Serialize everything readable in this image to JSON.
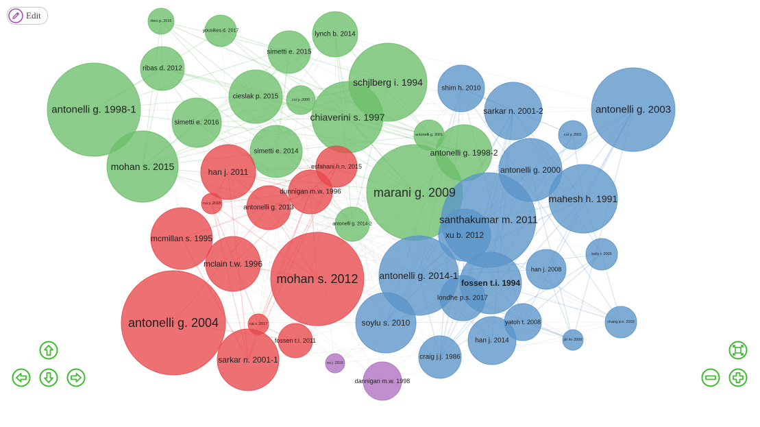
{
  "toolbar": {
    "edit_label": "Edit",
    "edit_icon": "pencil-icon"
  },
  "colors": {
    "green": "#6cbf6a",
    "blue": "#5b95c9",
    "red": "#e8484c",
    "purple": "#b16fc0",
    "controls": "#3dba2e",
    "edit_icon": "#a64fb3"
  },
  "nodes": [
    {
      "id": "n1",
      "label": "rbeo p. 2015",
      "cluster": "green",
      "size": 2
    },
    {
      "id": "n2",
      "label": "yousikes d. 2017",
      "cluster": "green",
      "size": 3
    },
    {
      "id": "n3",
      "label": "lynch b. 2014",
      "cluster": "green",
      "size": 5
    },
    {
      "id": "n4",
      "label": "ribas d. 2012",
      "cluster": "green",
      "size": 5
    },
    {
      "id": "n5",
      "label": "simetti e. 2015",
      "cluster": "green",
      "size": 5
    },
    {
      "id": "n6",
      "label": "schjlberg i. 1994",
      "cluster": "green",
      "size": 9
    },
    {
      "id": "n7",
      "label": "antonelli g. 1998-1",
      "cluster": "green",
      "size": 13
    },
    {
      "id": "n8",
      "label": "cieslak p. 2015",
      "cluster": "green",
      "size": 6
    },
    {
      "id": "n9",
      "label": "cui y. 2000",
      "cluster": "green",
      "size": 2
    },
    {
      "id": "n10",
      "label": "chiaverini s. 1997",
      "cluster": "green",
      "size": 9
    },
    {
      "id": "n11",
      "label": "simetti e. 2016",
      "cluster": "green",
      "size": 5
    },
    {
      "id": "n12",
      "label": "antonelli g. 2001",
      "cluster": "green",
      "size": 2
    },
    {
      "id": "n13",
      "label": "simetti e. 2014",
      "cluster": "green",
      "size": 6
    },
    {
      "id": "n14",
      "label": "antonelli g. 1998-2",
      "cluster": "green",
      "size": 7
    },
    {
      "id": "n15",
      "label": "mohan s. 2015",
      "cluster": "green",
      "size": 9
    },
    {
      "id": "n16",
      "label": "marani g. 2009",
      "cluster": "green",
      "size": 15
    },
    {
      "id": "n17",
      "label": "antonelli g. 2014-2",
      "cluster": "green",
      "size": 3
    },
    {
      "id": "n18",
      "label": "shim h. 2010",
      "cluster": "blue",
      "size": 5
    },
    {
      "id": "n19",
      "label": "sarkar n. 2001-2",
      "cluster": "blue",
      "size": 7
    },
    {
      "id": "n20",
      "label": "antonelli g. 2003",
      "cluster": "blue",
      "size": 12
    },
    {
      "id": "n21",
      "label": "cui y. 2001",
      "cluster": "blue",
      "size": 2
    },
    {
      "id": "n22",
      "label": "antonelli g. 2000",
      "cluster": "blue",
      "size": 8
    },
    {
      "id": "n23",
      "label": "mahesh h. 1991",
      "cluster": "blue",
      "size": 9
    },
    {
      "id": "n24",
      "label": "santhakumar m. 2011",
      "cluster": "blue",
      "size": 12
    },
    {
      "id": "n25",
      "label": "xu b. 2012",
      "cluster": "blue",
      "size": 7
    },
    {
      "id": "n26",
      "label": "kelly r. 2005",
      "cluster": "blue",
      "size": 2
    },
    {
      "id": "n27",
      "label": "han j. 2008",
      "cluster": "blue",
      "size": 4
    },
    {
      "id": "n28",
      "label": "antonelli g. 2014-1",
      "cluster": "blue",
      "size": 11
    },
    {
      "id": "n29",
      "label": "fossen t.i. 1994",
      "cluster": "blue",
      "size": 8
    },
    {
      "id": "n30",
      "label": "londhe p.s. 2017",
      "cluster": "blue",
      "size": 5
    },
    {
      "id": "n31",
      "label": "soylu s. 2010",
      "cluster": "blue",
      "size": 8
    },
    {
      "id": "n32",
      "label": "yatoh t. 2008",
      "cluster": "blue",
      "size": 4
    },
    {
      "id": "n33",
      "label": "chang p.n. 2003",
      "cluster": "blue",
      "size": 2
    },
    {
      "id": "n34",
      "label": "han j. 2014",
      "cluster": "blue",
      "size": 6
    },
    {
      "id": "n35",
      "label": "craig j.j. 1986",
      "cluster": "blue",
      "size": 5
    },
    {
      "id": "n36",
      "label": "jin m. 2009",
      "cluster": "blue",
      "size": 2
    },
    {
      "id": "n37",
      "label": "han j. 2011",
      "cluster": "red",
      "size": 7
    },
    {
      "id": "n38",
      "label": "esfahani h.n. 2015",
      "cluster": "red",
      "size": 4
    },
    {
      "id": "n39",
      "label": "dunnigan m.w. 1996",
      "cluster": "red",
      "size": 5
    },
    {
      "id": "n40",
      "label": "cui y. 2018",
      "cluster": "red",
      "size": 2
    },
    {
      "id": "n41",
      "label": "antonelli g. 2013",
      "cluster": "red",
      "size": 5
    },
    {
      "id": "n42",
      "label": "mcmillan s. 1995",
      "cluster": "red",
      "size": 8
    },
    {
      "id": "n43",
      "label": "mclain t.w. 1996",
      "cluster": "red",
      "size": 7
    },
    {
      "id": "n44",
      "label": "mohan s. 2012",
      "cluster": "red",
      "size": 14
    },
    {
      "id": "n45",
      "label": "antonelli g. 2004",
      "cluster": "red",
      "size": 15
    },
    {
      "id": "n46",
      "label": "cai x. 2017",
      "cluster": "red",
      "size": 2
    },
    {
      "id": "n47",
      "label": "fossen t.i. 2011",
      "cluster": "red",
      "size": 4
    },
    {
      "id": "n48",
      "label": "sarkar n. 2001-1",
      "cluster": "red",
      "size": 8
    },
    {
      "id": "n49",
      "label": "xu j. 2015",
      "cluster": "purple",
      "size": 2
    },
    {
      "id": "n50",
      "label": "dannigan m.w. 1998",
      "cluster": "purple",
      "size": 4
    }
  ],
  "controls": {
    "up_icon": "arrow-up-icon",
    "left_icon": "arrow-left-icon",
    "down_icon": "arrow-down-icon",
    "right_icon": "arrow-right-icon",
    "fit_icon": "fit-screen-icon",
    "zoom_out_icon": "zoom-out-icon",
    "zoom_in_icon": "zoom-in-icon"
  }
}
